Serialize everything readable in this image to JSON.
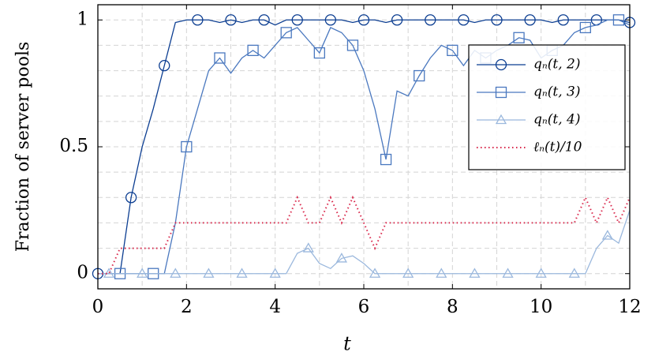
{
  "chart_data": {
    "type": "line",
    "xlabel": "t",
    "ylabel": "Fraction of server pools",
    "x": [
      0,
      0.25,
      0.5,
      0.75,
      1,
      1.25,
      1.5,
      1.75,
      2,
      2.25,
      2.5,
      2.75,
      3,
      3.25,
      3.5,
      3.75,
      4,
      4.25,
      4.5,
      4.75,
      5,
      5.25,
      5.5,
      5.75,
      6,
      6.25,
      6.5,
      6.75,
      7,
      7.25,
      7.5,
      7.75,
      8,
      8.25,
      8.5,
      8.75,
      9,
      9.25,
      9.5,
      9.75,
      10,
      10.25,
      10.5,
      10.75,
      11,
      11.25,
      11.5,
      11.75,
      12
    ],
    "series": [
      {
        "name": "qₙ(t, 2)",
        "color": "#0b3d91",
        "marker": "circle",
        "values": [
          0,
          0,
          0,
          0.3,
          0.5,
          0.65,
          0.82,
          0.99,
          1,
          1,
          1,
          0.99,
          1,
          0.99,
          1,
          1,
          0.98,
          1,
          1,
          1,
          1,
          1,
          1,
          0.99,
          1,
          1,
          0.99,
          1,
          1,
          1,
          1,
          1,
          1,
          1,
          0.99,
          1,
          1,
          1,
          1,
          1,
          1,
          0.99,
          1,
          1,
          1,
          1,
          1,
          1,
          0.99
        ]
      },
      {
        "name": "qₙ(t, 3)",
        "color": "#4a78bf",
        "marker": "square",
        "values": [
          0,
          0,
          0,
          0,
          0,
          0,
          0,
          0.2,
          0.5,
          0.65,
          0.8,
          0.85,
          0.79,
          0.85,
          0.88,
          0.85,
          0.9,
          0.95,
          0.97,
          0.92,
          0.87,
          0.97,
          0.95,
          0.9,
          0.8,
          0.65,
          0.45,
          0.72,
          0.7,
          0.78,
          0.85,
          0.9,
          0.88,
          0.82,
          0.88,
          0.85,
          0.88,
          0.9,
          0.93,
          0.92,
          0.85,
          0.88,
          0.9,
          0.95,
          0.97,
          0.98,
          1,
          1,
          0.98
        ]
      },
      {
        "name": "qₙ(t, 4)",
        "color": "#9bb8dd",
        "marker": "triangle",
        "values": [
          0,
          0,
          0,
          0,
          0,
          0,
          0,
          0,
          0,
          0,
          0,
          0,
          0,
          0,
          0,
          0,
          0,
          0,
          0.08,
          0.1,
          0.04,
          0.02,
          0.06,
          0.07,
          0.04,
          0,
          0,
          0,
          0,
          0,
          0,
          0,
          0,
          0,
          0,
          0,
          0,
          0,
          0,
          0,
          0,
          0,
          0,
          0,
          0,
          0.1,
          0.15,
          0.12,
          0.25
        ]
      },
      {
        "name": "ℓₙ(t)/10",
        "color": "#d9264a",
        "dash": "dotted",
        "values": [
          0,
          0,
          0.1,
          0.1,
          0.1,
          0.1,
          0.1,
          0.2,
          0.2,
          0.2,
          0.2,
          0.2,
          0.2,
          0.2,
          0.2,
          0.2,
          0.2,
          0.2,
          0.3,
          0.2,
          0.2,
          0.3,
          0.2,
          0.3,
          0.2,
          0.1,
          0.2,
          0.2,
          0.2,
          0.2,
          0.2,
          0.2,
          0.2,
          0.2,
          0.2,
          0.2,
          0.2,
          0.2,
          0.2,
          0.2,
          0.2,
          0.2,
          0.2,
          0.2,
          0.3,
          0.2,
          0.3,
          0.2,
          0.3
        ]
      }
    ],
    "xlim": [
      0,
      12
    ],
    "ylim": [
      -0.06,
      1.06
    ],
    "xticks": [
      0,
      2,
      4,
      6,
      8,
      10,
      12
    ],
    "yticks": [
      0,
      0.5,
      1
    ],
    "xgrid": [
      1,
      2,
      3,
      4,
      5,
      6,
      7,
      8,
      9,
      10,
      11
    ],
    "ygrid": [
      0,
      0.1,
      0.2,
      0.3,
      0.4,
      0.5,
      0.6,
      0.7,
      0.8,
      0.9,
      1
    ],
    "legend": "right"
  }
}
